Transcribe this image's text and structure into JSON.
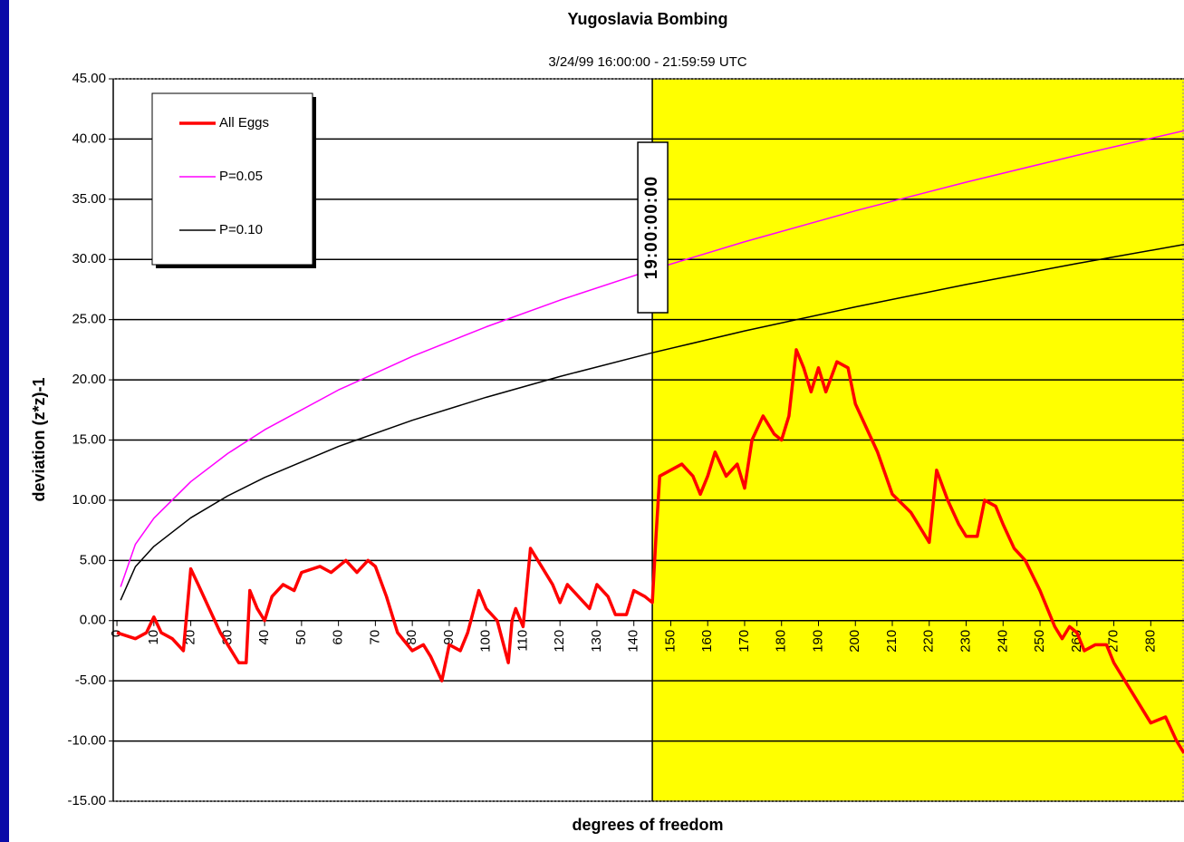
{
  "chart_data": {
    "type": "line",
    "title": "Yugoslavia Bombing",
    "subtitle": "3/24/99 16:00:00 - 21:59:59 UTC",
    "x_label": "degrees of freedom",
    "y_label": "deviation (z*z)-1",
    "xlim": [
      -1,
      289
    ],
    "ylim": [
      -15,
      45
    ],
    "xticks": [
      0,
      10,
      20,
      30,
      40,
      50,
      60,
      70,
      80,
      90,
      100,
      110,
      120,
      130,
      140,
      150,
      160,
      170,
      180,
      190,
      200,
      210,
      220,
      230,
      240,
      250,
      260,
      270,
      280
    ],
    "yticks": [
      {
        "value": -15,
        "label": "-15.00"
      },
      {
        "value": -10,
        "label": "-10.00"
      },
      {
        "value": -5,
        "label": "-5.00"
      },
      {
        "value": 0,
        "label": "0.00"
      },
      {
        "value": 5,
        "label": "5.00"
      },
      {
        "value": 10,
        "label": "10.00"
      },
      {
        "value": 15,
        "label": "15.00"
      },
      {
        "value": 20,
        "label": "20.00"
      },
      {
        "value": 25,
        "label": "25.00"
      },
      {
        "value": 30,
        "label": "30.00"
      },
      {
        "value": 35,
        "label": "35.00"
      },
      {
        "value": 40,
        "label": "40.00"
      },
      {
        "value": 45,
        "label": "45.00"
      }
    ],
    "grid": true,
    "highlight": {
      "x": 145,
      "color": "#ffff00",
      "label": "19:00:00:00"
    },
    "series": [
      {
        "name": "All Eggs",
        "color": "#ff0000",
        "x": [
          0,
          5,
          8,
          10,
          12,
          15,
          18,
          20,
          22,
          25,
          28,
          30,
          33,
          35,
          36,
          38,
          40,
          42,
          45,
          48,
          50,
          55,
          58,
          62,
          65,
          68,
          70,
          73,
          76,
          80,
          83,
          85,
          88,
          90,
          93,
          95,
          98,
          100,
          103,
          106,
          107,
          108,
          110,
          112,
          115,
          118,
          120,
          122,
          125,
          128,
          130,
          133,
          135,
          138,
          140,
          143,
          145,
          146,
          147,
          150,
          153,
          156,
          158,
          160,
          162,
          165,
          168,
          170,
          172,
          175,
          178,
          180,
          182,
          184,
          186,
          188,
          190,
          192,
          195,
          198,
          200,
          203,
          206,
          210,
          215,
          218,
          220,
          222,
          225,
          228,
          230,
          233,
          235,
          238,
          240,
          243,
          246,
          250,
          254,
          256,
          258,
          260,
          262,
          265,
          268,
          270,
          275,
          280,
          284,
          287,
          289
        ],
        "values": [
          -1,
          -1.5,
          -1,
          0.3,
          -1,
          -1.5,
          -2.5,
          4.3,
          3,
          1,
          -1,
          -2,
          -3.5,
          -3.5,
          2.5,
          1,
          0,
          2,
          3,
          2.5,
          4,
          4.5,
          4,
          5,
          4,
          5,
          4.5,
          2,
          -1,
          -2.5,
          -2,
          -3,
          -5,
          -2,
          -2.5,
          -1,
          2.5,
          1,
          0,
          -3.5,
          0,
          1,
          -0.5,
          6,
          4.5,
          3,
          1.5,
          3,
          2,
          1,
          3,
          2,
          0.5,
          0.5,
          2.5,
          2,
          1.5,
          7,
          12,
          12.5,
          13,
          12,
          10.5,
          12,
          14,
          12,
          13,
          11,
          15,
          17,
          15.5,
          15,
          17,
          22.5,
          21,
          19,
          21,
          19,
          21.5,
          21,
          18,
          16,
          14,
          10.5,
          9,
          7.5,
          6.5,
          12.5,
          10,
          8,
          7,
          7,
          10,
          9.5,
          8,
          6,
          5,
          2.5,
          -0.5,
          -1.5,
          -0.5,
          -1,
          -2.5,
          -2,
          -2,
          -3.5,
          -6,
          -8.5,
          -8,
          -10,
          -11
        ]
      },
      {
        "name": "P=0.05",
        "color": "#ff00ff",
        "x": [
          1,
          5,
          10,
          20,
          30,
          40,
          60,
          80,
          100,
          120,
          145,
          170,
          200,
          230,
          260,
          289
        ],
        "values": [
          2.8,
          6.34,
          8.5,
          11.54,
          13.88,
          15.85,
          19.16,
          21.95,
          24.4,
          26.62,
          29.15,
          31.47,
          34.04,
          36.42,
          38.65,
          40.69
        ]
      },
      {
        "name": "P=0.10",
        "color": "#000000",
        "x": [
          1,
          5,
          10,
          20,
          30,
          40,
          60,
          80,
          100,
          120,
          145,
          170,
          200,
          230,
          260,
          289
        ],
        "values": [
          1.7,
          4.48,
          6.16,
          8.54,
          10.36,
          11.89,
          14.47,
          16.64,
          18.55,
          20.28,
          22.25,
          24.06,
          26.06,
          27.92,
          29.66,
          31.24
        ]
      }
    ]
  }
}
